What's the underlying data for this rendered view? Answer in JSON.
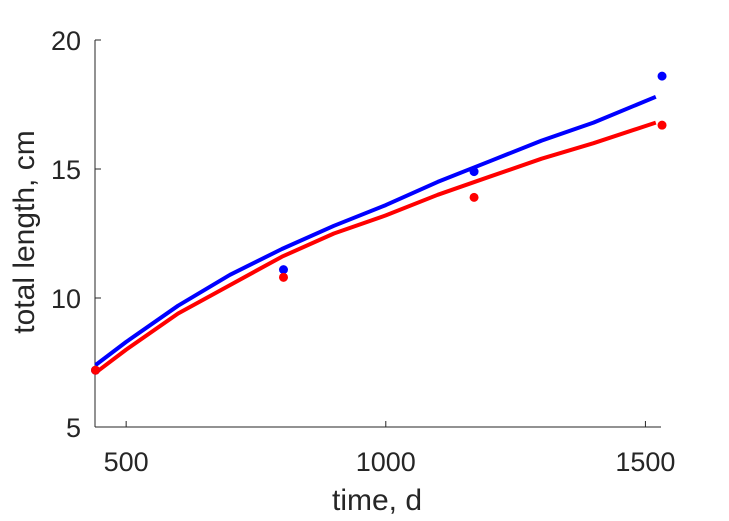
{
  "chart_data": {
    "type": "scatter",
    "title": "",
    "xlabel": "time, d",
    "ylabel": "total length, cm",
    "xlim": [
      440,
      1530
    ],
    "ylim": [
      5,
      20
    ],
    "xticks": [
      500,
      1000,
      1500
    ],
    "yticks": [
      5,
      10,
      15,
      20
    ],
    "grid": false,
    "legend": "none",
    "series": [
      {
        "color": "#0000ff",
        "points": {
          "x": [
            441,
            803,
            1170,
            1532
          ],
          "y": [
            7.2,
            11.1,
            14.9,
            18.6
          ]
        },
        "curve": {
          "x": [
            441,
            500,
            600,
            700,
            800,
            900,
            1000,
            1100,
            1200,
            1300,
            1400,
            1520
          ],
          "y": [
            7.4,
            8.3,
            9.7,
            10.9,
            11.9,
            12.8,
            13.6,
            14.5,
            15.3,
            16.1,
            16.8,
            17.8
          ]
        }
      },
      {
        "color": "#ff0000",
        "points": {
          "x": [
            441,
            803,
            1170,
            1532
          ],
          "y": [
            7.2,
            10.8,
            13.9,
            16.7
          ]
        },
        "curve": {
          "x": [
            441,
            500,
            600,
            700,
            800,
            900,
            1000,
            1100,
            1200,
            1300,
            1400,
            1520
          ],
          "y": [
            7.1,
            8.0,
            9.4,
            10.5,
            11.6,
            12.5,
            13.2,
            14.0,
            14.7,
            15.4,
            16.0,
            16.8
          ]
        }
      }
    ]
  }
}
